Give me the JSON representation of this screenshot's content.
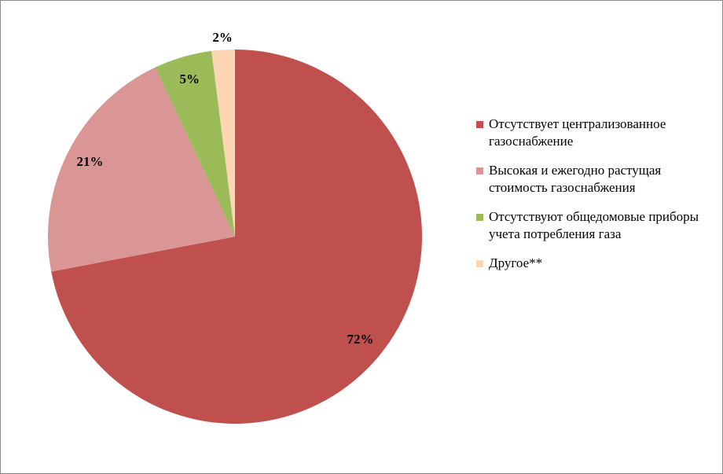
{
  "chart_data": {
    "type": "pie",
    "categories": [
      "Отсутствует  централизованное газоснабжение",
      "Высокая и ежегодно растущая стоимость газоснабжения",
      "Отсутствуют  общедомовые приборы учета потребления газа",
      "Другое**"
    ],
    "values": [
      72,
      21,
      5,
      2
    ],
    "value_labels": [
      "72%",
      "21%",
      "5%",
      "2%"
    ],
    "colors": [
      "#c0504d",
      "#d99694",
      "#9bbb59",
      "#fcd5b5"
    ],
    "legend": "right"
  }
}
